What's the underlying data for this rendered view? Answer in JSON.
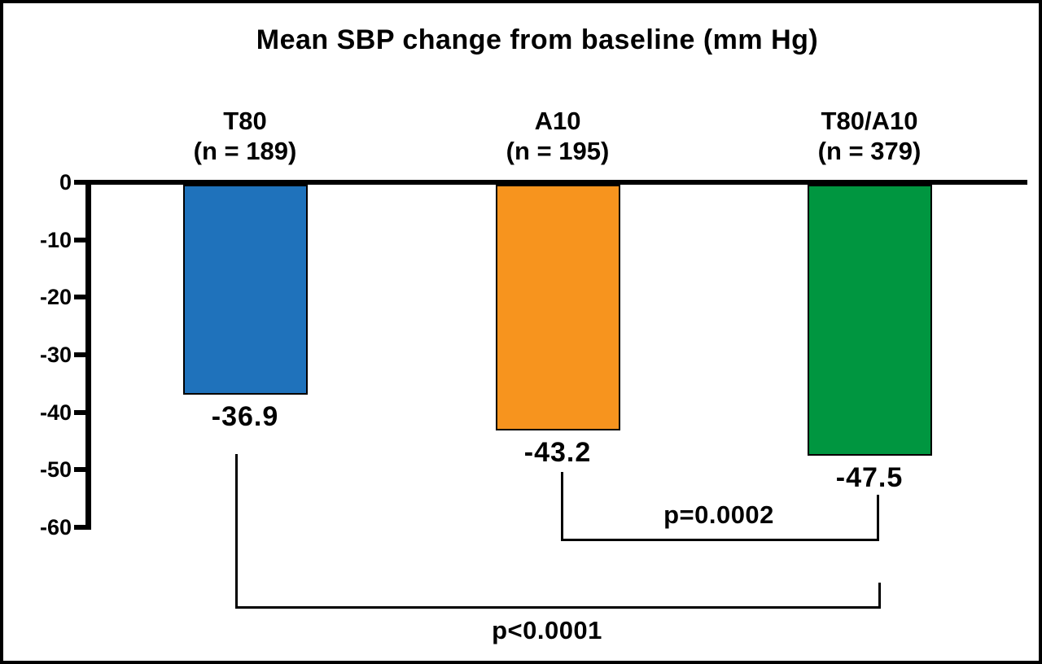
{
  "title": "Mean SBP change from baseline (mm Hg)",
  "chart_data": {
    "type": "bar",
    "title": "Mean SBP change from baseline (mm Hg)",
    "xlabel": "",
    "ylabel": "",
    "categories": [
      "T80",
      "A10",
      "T80/A10"
    ],
    "category_sublabels": [
      "(n = 189)",
      "(n = 195)",
      "(n = 379)"
    ],
    "values": [
      -36.9,
      -43.2,
      -47.5
    ],
    "value_labels": [
      "-36.9",
      "-43.2",
      "-47.5"
    ],
    "bar_colors": [
      "#1f72bb",
      "#f7941e",
      "#009640"
    ],
    "ylim": [
      -60,
      0
    ],
    "yticks": [
      0,
      -10,
      -20,
      -30,
      -40,
      -50,
      -60
    ],
    "ytick_labels": [
      "0",
      "-10",
      "-20",
      "-30",
      "-40",
      "-50",
      "-60"
    ],
    "grid": false,
    "legend": null,
    "annotations": [
      {
        "type": "comparison-bracket",
        "from": "A10",
        "to": "T80/A10",
        "label": "p=0.0002"
      },
      {
        "type": "comparison-bracket",
        "from": "T80",
        "to": "T80/A10",
        "label": "p<0.0001"
      }
    ]
  },
  "colors": {
    "axis": "#000000",
    "background": "#ffffff",
    "border": "#000000",
    "text": "#000000"
  }
}
